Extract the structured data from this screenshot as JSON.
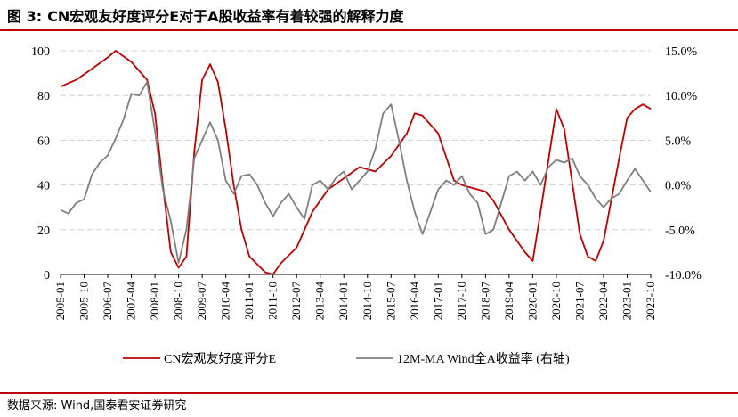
{
  "title_prefix": "图 3:",
  "title_text": "CN宏观友好度评分E对于A股收益率有着较强的解释力度",
  "source": "数据来源: Wind,国泰君安证券研究",
  "chart_data": {
    "type": "line",
    "legend_position": "bottom",
    "grid": "horizontal dashed",
    "y_left": {
      "range": [
        0,
        100
      ],
      "ticks": [
        "0",
        "20",
        "40",
        "60",
        "80",
        "100"
      ]
    },
    "y_right": {
      "range": [
        -10,
        15
      ],
      "ticks": [
        "-10.0%",
        "-5.0%",
        "0.0%",
        "5.0%",
        "10.0%",
        "15.0%"
      ]
    },
    "x_ticks": [
      "2005-01",
      "2005-10",
      "2006-07",
      "2007-04",
      "2008-01",
      "2008-10",
      "2009-07",
      "2010-04",
      "2011-01",
      "2011-10",
      "2012-07",
      "2013-04",
      "2014-01",
      "2014-10",
      "2015-07",
      "2016-04",
      "2017-01",
      "2017-10",
      "2018-07",
      "2019-04",
      "2020-01",
      "2020-10",
      "2021-07",
      "2022-04",
      "2023-01",
      "2023-10"
    ],
    "series": [
      {
        "name": "CN宏观友好度评分E",
        "axis": "left",
        "color": "#c00000",
        "points": [
          [
            "2005-01",
            84
          ],
          [
            "2005-07",
            87
          ],
          [
            "2006-01",
            92
          ],
          [
            "2006-07",
            97
          ],
          [
            "2006-10",
            100
          ],
          [
            "2007-04",
            95
          ],
          [
            "2007-10",
            87
          ],
          [
            "2008-01",
            72
          ],
          [
            "2008-04",
            40
          ],
          [
            "2008-07",
            10
          ],
          [
            "2008-10",
            3
          ],
          [
            "2009-01",
            8
          ],
          [
            "2009-04",
            55
          ],
          [
            "2009-07",
            87
          ],
          [
            "2009-10",
            94
          ],
          [
            "2010-01",
            86
          ],
          [
            "2010-04",
            65
          ],
          [
            "2010-07",
            40
          ],
          [
            "2010-10",
            20
          ],
          [
            "2011-01",
            8
          ],
          [
            "2011-07",
            1
          ],
          [
            "2011-10",
            0
          ],
          [
            "2012-01",
            5
          ],
          [
            "2012-07",
            12
          ],
          [
            "2013-01",
            28
          ],
          [
            "2013-07",
            38
          ],
          [
            "2014-01",
            43
          ],
          [
            "2014-07",
            48
          ],
          [
            "2014-10",
            47
          ],
          [
            "2015-01",
            46
          ],
          [
            "2015-07",
            53
          ],
          [
            "2016-01",
            63
          ],
          [
            "2016-04",
            72
          ],
          [
            "2016-07",
            71
          ],
          [
            "2017-01",
            63
          ],
          [
            "2017-07",
            42
          ],
          [
            "2017-10",
            40
          ],
          [
            "2018-01",
            39
          ],
          [
            "2018-07",
            37
          ],
          [
            "2018-10",
            33
          ],
          [
            "2019-04",
            20
          ],
          [
            "2019-10",
            10
          ],
          [
            "2020-01",
            6
          ],
          [
            "2020-04",
            28
          ],
          [
            "2020-10",
            74
          ],
          [
            "2021-01",
            65
          ],
          [
            "2021-07",
            18
          ],
          [
            "2021-10",
            8
          ],
          [
            "2022-01",
            6
          ],
          [
            "2022-04",
            15
          ],
          [
            "2022-10",
            52
          ],
          [
            "2023-01",
            70
          ],
          [
            "2023-04",
            74
          ],
          [
            "2023-07",
            76
          ],
          [
            "2023-10",
            74
          ]
        ]
      },
      {
        "name": "12M-MA Wind全A收益率 (右轴)",
        "axis": "right",
        "color": "#7f7f7f",
        "points": [
          [
            "2005-01",
            -2.8
          ],
          [
            "2005-04",
            -3.2
          ],
          [
            "2005-07",
            -2.0
          ],
          [
            "2005-10",
            -1.6
          ],
          [
            "2006-01",
            1.2
          ],
          [
            "2006-04",
            2.5
          ],
          [
            "2006-07",
            3.3
          ],
          [
            "2006-10",
            5.2
          ],
          [
            "2007-01",
            7.3
          ],
          [
            "2007-04",
            10.2
          ],
          [
            "2007-07",
            10.0
          ],
          [
            "2007-10",
            11.5
          ],
          [
            "2008-01",
            6.0
          ],
          [
            "2008-04",
            -0.5
          ],
          [
            "2008-07",
            -4.0
          ],
          [
            "2008-10",
            -8.7
          ],
          [
            "2009-01",
            -5.0
          ],
          [
            "2009-04",
            3.0
          ],
          [
            "2009-07",
            5.0
          ],
          [
            "2009-10",
            7.0
          ],
          [
            "2010-01",
            5.0
          ],
          [
            "2010-04",
            0.5
          ],
          [
            "2010-07",
            -1.0
          ],
          [
            "2010-10",
            1.0
          ],
          [
            "2011-01",
            1.2
          ],
          [
            "2011-04",
            0.0
          ],
          [
            "2011-07",
            -2.0
          ],
          [
            "2011-10",
            -3.5
          ],
          [
            "2012-01",
            -2.0
          ],
          [
            "2012-04",
            -1.0
          ],
          [
            "2012-07",
            -2.5
          ],
          [
            "2012-10",
            -3.8
          ],
          [
            "2013-01",
            0.0
          ],
          [
            "2013-04",
            0.5
          ],
          [
            "2013-07",
            -0.5
          ],
          [
            "2013-10",
            0.8
          ],
          [
            "2014-01",
            1.5
          ],
          [
            "2014-04",
            -0.5
          ],
          [
            "2014-07",
            0.5
          ],
          [
            "2014-10",
            1.5
          ],
          [
            "2015-01",
            4.0
          ],
          [
            "2015-04",
            8.0
          ],
          [
            "2015-07",
            9.0
          ],
          [
            "2015-10",
            5.0
          ],
          [
            "2016-01",
            0.5
          ],
          [
            "2016-04",
            -3.0
          ],
          [
            "2016-07",
            -5.5
          ],
          [
            "2016-10",
            -3.0
          ],
          [
            "2017-01",
            -0.5
          ],
          [
            "2017-04",
            0.5
          ],
          [
            "2017-07",
            0.0
          ],
          [
            "2017-10",
            1.0
          ],
          [
            "2018-01",
            -1.0
          ],
          [
            "2018-04",
            -2.0
          ],
          [
            "2018-07",
            -5.5
          ],
          [
            "2018-10",
            -5.0
          ],
          [
            "2019-01",
            -2.0
          ],
          [
            "2019-04",
            1.0
          ],
          [
            "2019-07",
            1.5
          ],
          [
            "2019-10",
            0.5
          ],
          [
            "2020-01",
            1.5
          ],
          [
            "2020-04",
            0.0
          ],
          [
            "2020-07",
            2.0
          ],
          [
            "2020-10",
            2.8
          ],
          [
            "2021-01",
            2.5
          ],
          [
            "2021-04",
            3.0
          ],
          [
            "2021-07",
            1.0
          ],
          [
            "2021-10",
            0.0
          ],
          [
            "2022-01",
            -1.5
          ],
          [
            "2022-04",
            -2.5
          ],
          [
            "2022-07",
            -1.5
          ],
          [
            "2022-10",
            -1.0
          ],
          [
            "2023-01",
            0.5
          ],
          [
            "2023-04",
            1.8
          ],
          [
            "2023-07",
            0.5
          ],
          [
            "2023-10",
            -0.8
          ]
        ]
      }
    ]
  }
}
